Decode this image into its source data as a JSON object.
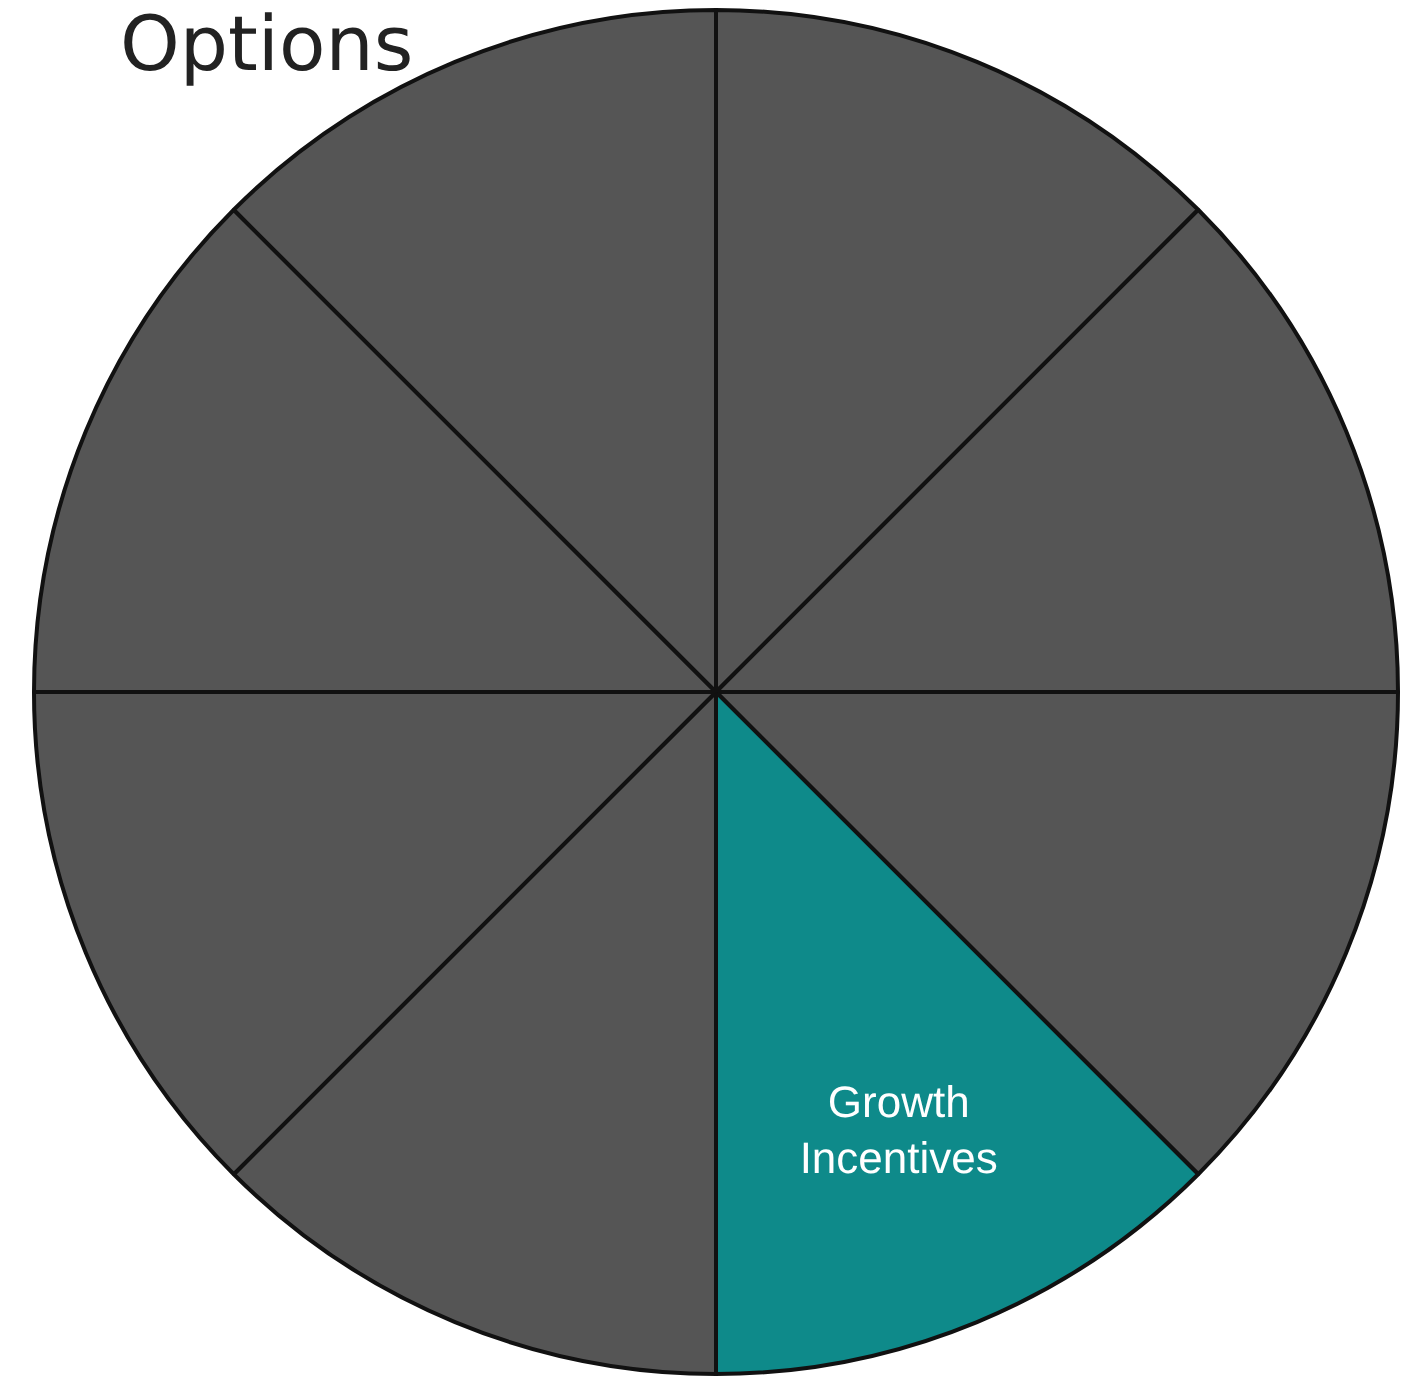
{
  "chart_data": {
    "type": "pie",
    "title": "Options",
    "categories": [
      null,
      null,
      null,
      "Growth Incentives",
      null,
      null,
      null,
      null
    ],
    "values": [
      12.5,
      12.5,
      12.5,
      12.5,
      12.5,
      12.5,
      12.5,
      12.5
    ],
    "colors": [
      "#555555",
      "#555555",
      "#555555",
      "#0e8a8a",
      "#555555",
      "#555555",
      "#555555",
      "#555555"
    ],
    "legend": false
  }
}
